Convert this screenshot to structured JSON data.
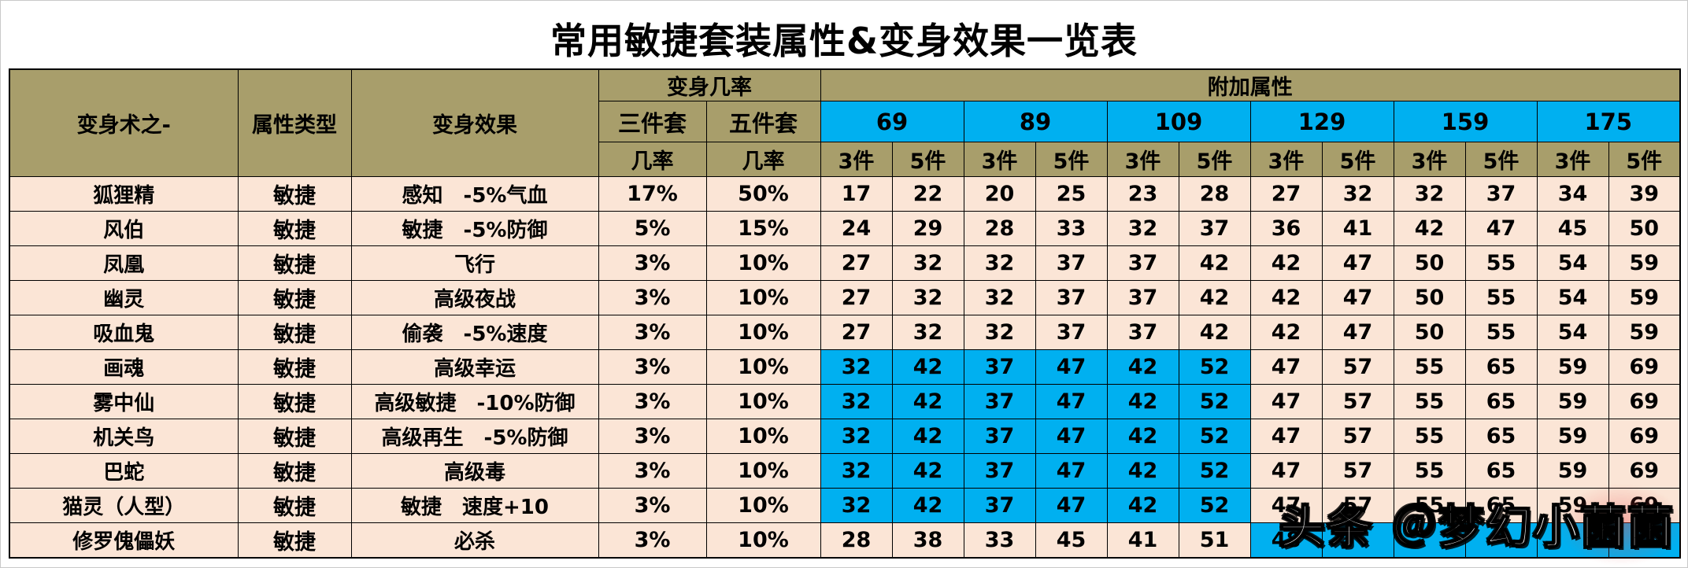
{
  "title": "常用敏捷套装属性&变身效果一览表",
  "watermark": {
    "text": "头条 ＠梦幻小菌菌"
  },
  "colors": {
    "header_bg": "#A89E6B",
    "level_header_bg": "#00B0F0",
    "highlight_bg": "#00B0F0",
    "row_bg": "#FBE5D6",
    "border": "#000000"
  },
  "table": {
    "headers": {
      "name": "变身术之-",
      "attr_type": "属性类型",
      "effect": "变身效果",
      "chance_group": "变身几率",
      "bonus_group": "附加属性",
      "set3": "三件套",
      "set5": "五件套",
      "chance": "几率",
      "piece3": "3件",
      "piece5": "5件",
      "levels": [
        "69",
        "89",
        "109",
        "129",
        "159",
        "175"
      ]
    },
    "rows": [
      {
        "name": "狐狸精",
        "type": "敏捷",
        "effect": "感知　-5%气血",
        "chance3": "17%",
        "chance5": "50%",
        "values": [
          17,
          22,
          20,
          25,
          23,
          28,
          27,
          32,
          32,
          37,
          34,
          39
        ],
        "highlight": []
      },
      {
        "name": "风伯",
        "type": "敏捷",
        "effect": "敏捷　-5%防御",
        "chance3": "5%",
        "chance5": "15%",
        "values": [
          24,
          29,
          28,
          33,
          32,
          37,
          36,
          41,
          42,
          47,
          45,
          50
        ],
        "highlight": []
      },
      {
        "name": "凤凰",
        "type": "敏捷",
        "effect": "飞行",
        "chance3": "3%",
        "chance5": "10%",
        "values": [
          27,
          32,
          32,
          37,
          37,
          42,
          42,
          47,
          50,
          55,
          54,
          59
        ],
        "highlight": []
      },
      {
        "name": "幽灵",
        "type": "敏捷",
        "effect": "高级夜战",
        "chance3": "3%",
        "chance5": "10%",
        "values": [
          27,
          32,
          32,
          37,
          37,
          42,
          42,
          47,
          50,
          55,
          54,
          59
        ],
        "highlight": []
      },
      {
        "name": "吸血鬼",
        "type": "敏捷",
        "effect": "偷袭　-5%速度",
        "chance3": "3%",
        "chance5": "10%",
        "values": [
          27,
          32,
          32,
          37,
          37,
          42,
          42,
          47,
          50,
          55,
          54,
          59
        ],
        "highlight": []
      },
      {
        "name": "画魂",
        "type": "敏捷",
        "effect": "高级幸运",
        "chance3": "3%",
        "chance5": "10%",
        "values": [
          32,
          42,
          37,
          47,
          42,
          52,
          47,
          57,
          55,
          65,
          59,
          69
        ],
        "highlight": [
          0,
          1,
          2,
          3,
          4,
          5
        ]
      },
      {
        "name": "雾中仙",
        "type": "敏捷",
        "effect": "高级敏捷　-10%防御",
        "chance3": "3%",
        "chance5": "10%",
        "values": [
          32,
          42,
          37,
          47,
          42,
          52,
          47,
          57,
          55,
          65,
          59,
          69
        ],
        "highlight": [
          0,
          1,
          2,
          3,
          4,
          5
        ]
      },
      {
        "name": "机关鸟",
        "type": "敏捷",
        "effect": "高级再生　-5%防御",
        "chance3": "3%",
        "chance5": "10%",
        "values": [
          32,
          42,
          37,
          47,
          42,
          52,
          47,
          57,
          55,
          65,
          59,
          69
        ],
        "highlight": [
          0,
          1,
          2,
          3,
          4,
          5
        ]
      },
      {
        "name": "巴蛇",
        "type": "敏捷",
        "effect": "高级毒",
        "chance3": "3%",
        "chance5": "10%",
        "values": [
          32,
          42,
          37,
          47,
          42,
          52,
          47,
          57,
          55,
          65,
          59,
          69
        ],
        "highlight": [
          0,
          1,
          2,
          3,
          4,
          5
        ]
      },
      {
        "name": "猫灵（人型）",
        "type": "敏捷",
        "effect": "敏捷　速度+10",
        "chance3": "3%",
        "chance5": "10%",
        "values": [
          32,
          42,
          37,
          47,
          42,
          52,
          47,
          57,
          55,
          65,
          59,
          69
        ],
        "highlight": [
          0,
          1,
          2,
          3,
          4,
          5
        ]
      },
      {
        "name": "修罗傀儡妖",
        "type": "敏捷",
        "effect": "必杀",
        "chance3": "3%",
        "chance5": "10%",
        "values": [
          28,
          38,
          33,
          45,
          41,
          51,
          48,
          null,
          null,
          null,
          null,
          null
        ],
        "highlight": [
          6,
          7,
          8,
          9,
          10,
          11
        ]
      }
    ]
  },
  "chart_data": {
    "type": "table",
    "title": "常用敏捷套装属性&变身效果一览表",
    "columns": [
      "变身术之-",
      "属性类型",
      "变身效果",
      "变身几率 三件套 几率",
      "变身几率 五件套 几率",
      "附加属性 69 3件",
      "附加属性 69 5件",
      "附加属性 89 3件",
      "附加属性 89 5件",
      "附加属性 109 3件",
      "附加属性 109 5件",
      "附加属性 129 3件",
      "附加属性 129 5件",
      "附加属性 159 3件",
      "附加属性 159 5件",
      "附加属性 175 3件",
      "附加属性 175 5件"
    ],
    "rows": [
      [
        "狐狸精",
        "敏捷",
        "感知　-5%气血",
        "17%",
        "50%",
        17,
        22,
        20,
        25,
        23,
        28,
        27,
        32,
        32,
        37,
        34,
        39
      ],
      [
        "风伯",
        "敏捷",
        "敏捷　-5%防御",
        "5%",
        "15%",
        24,
        29,
        28,
        33,
        32,
        37,
        36,
        41,
        42,
        47,
        45,
        50
      ],
      [
        "凤凰",
        "敏捷",
        "飞行",
        "3%",
        "10%",
        27,
        32,
        32,
        37,
        37,
        42,
        42,
        47,
        50,
        55,
        54,
        59
      ],
      [
        "幽灵",
        "敏捷",
        "高级夜战",
        "3%",
        "10%",
        27,
        32,
        32,
        37,
        37,
        42,
        42,
        47,
        50,
        55,
        54,
        59
      ],
      [
        "吸血鬼",
        "敏捷",
        "偷袭　-5%速度",
        "3%",
        "10%",
        27,
        32,
        32,
        37,
        37,
        42,
        42,
        47,
        50,
        55,
        54,
        59
      ],
      [
        "画魂",
        "敏捷",
        "高级幸运",
        "3%",
        "10%",
        32,
        42,
        37,
        47,
        42,
        52,
        47,
        57,
        55,
        65,
        59,
        69
      ],
      [
        "雾中仙",
        "敏捷",
        "高级敏捷　-10%防御",
        "3%",
        "10%",
        32,
        42,
        37,
        47,
        42,
        52,
        47,
        57,
        55,
        65,
        59,
        69
      ],
      [
        "机关鸟",
        "敏捷",
        "高级再生　-5%防御",
        "3%",
        "10%",
        32,
        42,
        37,
        47,
        42,
        52,
        47,
        57,
        55,
        65,
        59,
        69
      ],
      [
        "巴蛇",
        "敏捷",
        "高级毒",
        "3%",
        "10%",
        32,
        42,
        37,
        47,
        42,
        52,
        47,
        57,
        55,
        65,
        59,
        69
      ],
      [
        "猫灵（人型）",
        "敏捷",
        "敏捷　速度+10",
        "3%",
        "10%",
        32,
        42,
        37,
        47,
        42,
        52,
        47,
        57,
        55,
        65,
        59,
        69
      ],
      [
        "修罗傀儡妖",
        "敏捷",
        "必杀",
        "3%",
        "10%",
        28,
        38,
        33,
        45,
        41,
        51,
        48,
        null,
        null,
        null,
        null,
        null
      ]
    ],
    "legend": null,
    "grid": true,
    "notes_layout": "cells highlighted #00B0F0: rows 画魂–猫灵（人型） at levels 69/89/109; row 修罗傀儡妖 at levels 129/159/175"
  }
}
